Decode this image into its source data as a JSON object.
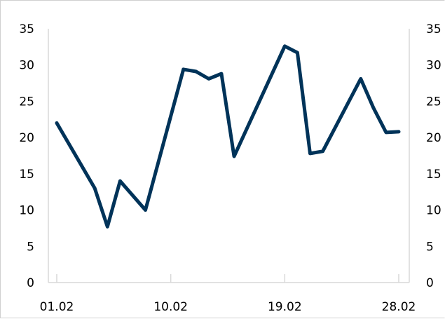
{
  "chart_data": {
    "type": "line",
    "title": "",
    "xlabel": "",
    "ylabel": "",
    "ylim": [
      0,
      35
    ],
    "yticks": [
      "0",
      "5",
      "10",
      "15",
      "20",
      "25",
      "30",
      "35"
    ],
    "xlim": [
      "01.02",
      "28.02"
    ],
    "xticks": [
      "01.02",
      "10.02",
      "19.02",
      "28.02"
    ],
    "grid": false,
    "right_axis": true,
    "line_color": "#003359",
    "series": [
      {
        "x": [
          "01.02",
          "04.02",
          "05.02",
          "06.02",
          "08.02",
          "11.02",
          "12.02",
          "13.02",
          "14.02",
          "15.02",
          "19.02",
          "20.02",
          "21.02",
          "22.02",
          "25.02",
          "26.02",
          "27.02",
          "28.02"
        ],
        "values": [
          22,
          13,
          7.7,
          14,
          10,
          29.4,
          29.1,
          28.1,
          28.8,
          17.4,
          32.6,
          31.7,
          17.8,
          18.1,
          28.1,
          24.1,
          20.7,
          20.8
        ]
      }
    ]
  }
}
